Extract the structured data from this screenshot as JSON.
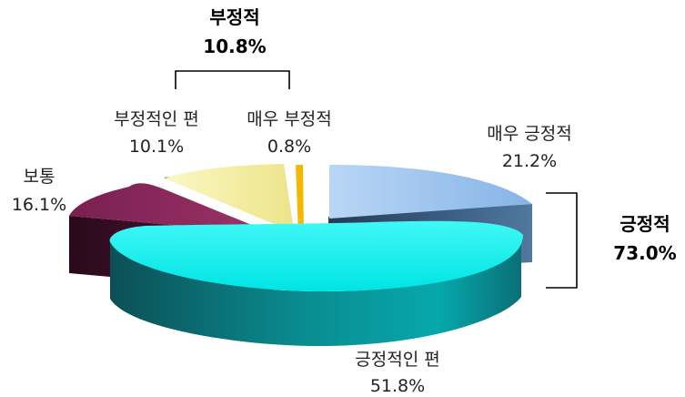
{
  "chart_data": {
    "type": "pie",
    "slices": [
      {
        "label": "매우 긍정적",
        "value": 21.2,
        "value_label": "21.2%",
        "color": "#9cc4ea"
      },
      {
        "label": "긍정적인 편",
        "value": 51.8,
        "value_label": "51.8%",
        "color": "#14f0ee"
      },
      {
        "label": "보통",
        "value": 16.1,
        "value_label": "16.1%",
        "color": "#8a2c5e"
      },
      {
        "label": "부정적인 편",
        "value": 10.1,
        "value_label": "10.1%",
        "color": "#f4f0a2"
      },
      {
        "label": "매우 부정적",
        "value": 0.8,
        "value_label": "0.8%",
        "color": "#f2b400"
      }
    ],
    "groups": [
      {
        "label": "긍정적",
        "value_label": "73.0%"
      },
      {
        "label": "부정적",
        "value_label": "10.8%"
      }
    ]
  }
}
